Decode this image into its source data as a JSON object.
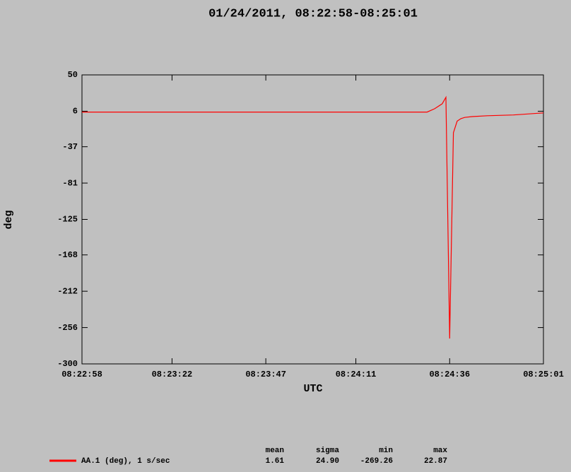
{
  "chart_data": {
    "type": "line",
    "title": "01/24/2011, 08:22:58-08:25:01",
    "x_label": "UTC",
    "y_label": "deg",
    "x": [
      "08:22:58",
      "08:24:30",
      "08:24:32",
      "08:24:34",
      "08:24:35",
      "08:24:36",
      "08:24:37",
      "08:24:38",
      "08:24:39",
      "08:24:40",
      "08:24:42",
      "08:24:46",
      "08:24:53",
      "08:25:01"
    ],
    "series": [
      {
        "name": "AA.1 (deg), 1 s/sec",
        "color": "#ff0000",
        "values": [
          5,
          5,
          9,
          15,
          22.87,
          -269.26,
          -20,
          -6,
          -3,
          -1.5,
          -0.5,
          0.5,
          1.5,
          4
        ]
      }
    ],
    "xlim": [
      "08:22:58",
      "08:25:01"
    ],
    "xticks": [
      "08:22:58",
      "08:23:22",
      "08:23:47",
      "08:24:11",
      "08:24:36",
      "08:25:01"
    ],
    "ylim": [
      -300,
      50
    ],
    "yticks": [
      50,
      6,
      -37,
      -81,
      -125,
      -168,
      -212,
      -256,
      -300
    ],
    "stats": {
      "headers": [
        "mean",
        "sigma",
        "min",
        "max"
      ],
      "values": [
        "1.61",
        "24.90",
        "-269.26",
        "22.87"
      ]
    }
  }
}
